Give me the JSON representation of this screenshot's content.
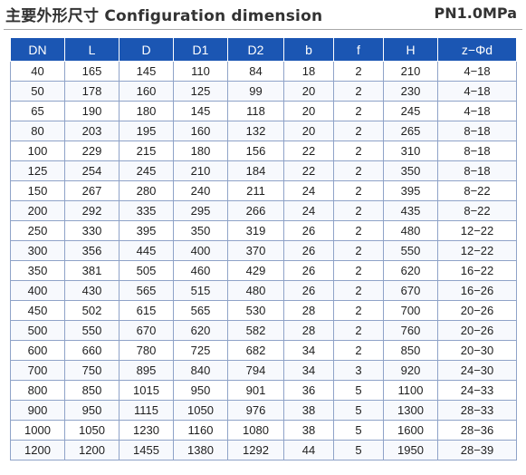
{
  "header": {
    "title": "主要外形尺寸 Configuration dimension",
    "pressure": "PN1.0MPa"
  },
  "table": {
    "columns": [
      "DN",
      "L",
      "D",
      "D1",
      "D2",
      "b",
      "f",
      "H",
      "z−Φd"
    ],
    "rows": [
      [
        "40",
        "165",
        "145",
        "110",
        "84",
        "18",
        "2",
        "210",
        "4−18"
      ],
      [
        "50",
        "178",
        "160",
        "125",
        "99",
        "20",
        "2",
        "230",
        "4−18"
      ],
      [
        "65",
        "190",
        "180",
        "145",
        "118",
        "20",
        "2",
        "245",
        "4−18"
      ],
      [
        "80",
        "203",
        "195",
        "160",
        "132",
        "20",
        "2",
        "265",
        "8−18"
      ],
      [
        "100",
        "229",
        "215",
        "180",
        "156",
        "22",
        "2",
        "310",
        "8−18"
      ],
      [
        "125",
        "254",
        "245",
        "210",
        "184",
        "22",
        "2",
        "350",
        "8−18"
      ],
      [
        "150",
        "267",
        "280",
        "240",
        "211",
        "24",
        "2",
        "395",
        "8−22"
      ],
      [
        "200",
        "292",
        "335",
        "295",
        "266",
        "24",
        "2",
        "435",
        "8−22"
      ],
      [
        "250",
        "330",
        "395",
        "350",
        "319",
        "26",
        "2",
        "480",
        "12−22"
      ],
      [
        "300",
        "356",
        "445",
        "400",
        "370",
        "26",
        "2",
        "550",
        "12−22"
      ],
      [
        "350",
        "381",
        "505",
        "460",
        "429",
        "26",
        "2",
        "620",
        "16−22"
      ],
      [
        "400",
        "430",
        "565",
        "515",
        "480",
        "26",
        "2",
        "670",
        "16−26"
      ],
      [
        "450",
        "502",
        "615",
        "565",
        "530",
        "28",
        "2",
        "700",
        "20−26"
      ],
      [
        "500",
        "550",
        "670",
        "620",
        "582",
        "28",
        "2",
        "760",
        "20−26"
      ],
      [
        "600",
        "660",
        "780",
        "725",
        "682",
        "34",
        "2",
        "850",
        "20−30"
      ],
      [
        "700",
        "750",
        "895",
        "840",
        "794",
        "34",
        "3",
        "920",
        "24−30"
      ],
      [
        "800",
        "850",
        "1015",
        "950",
        "901",
        "36",
        "5",
        "1100",
        "24−33"
      ],
      [
        "900",
        "950",
        "1115",
        "1050",
        "976",
        "38",
        "5",
        "1300",
        "28−33"
      ],
      [
        "1000",
        "1050",
        "1230",
        "1160",
        "1080",
        "38",
        "5",
        "1600",
        "28−36"
      ],
      [
        "1200",
        "1200",
        "1455",
        "1380",
        "1292",
        "44",
        "5",
        "1950",
        "28−39"
      ]
    ]
  },
  "colors": {
    "header_bg": "#1b56b3",
    "header_text": "#ffffff",
    "grid_line": "#8fa3c8"
  }
}
